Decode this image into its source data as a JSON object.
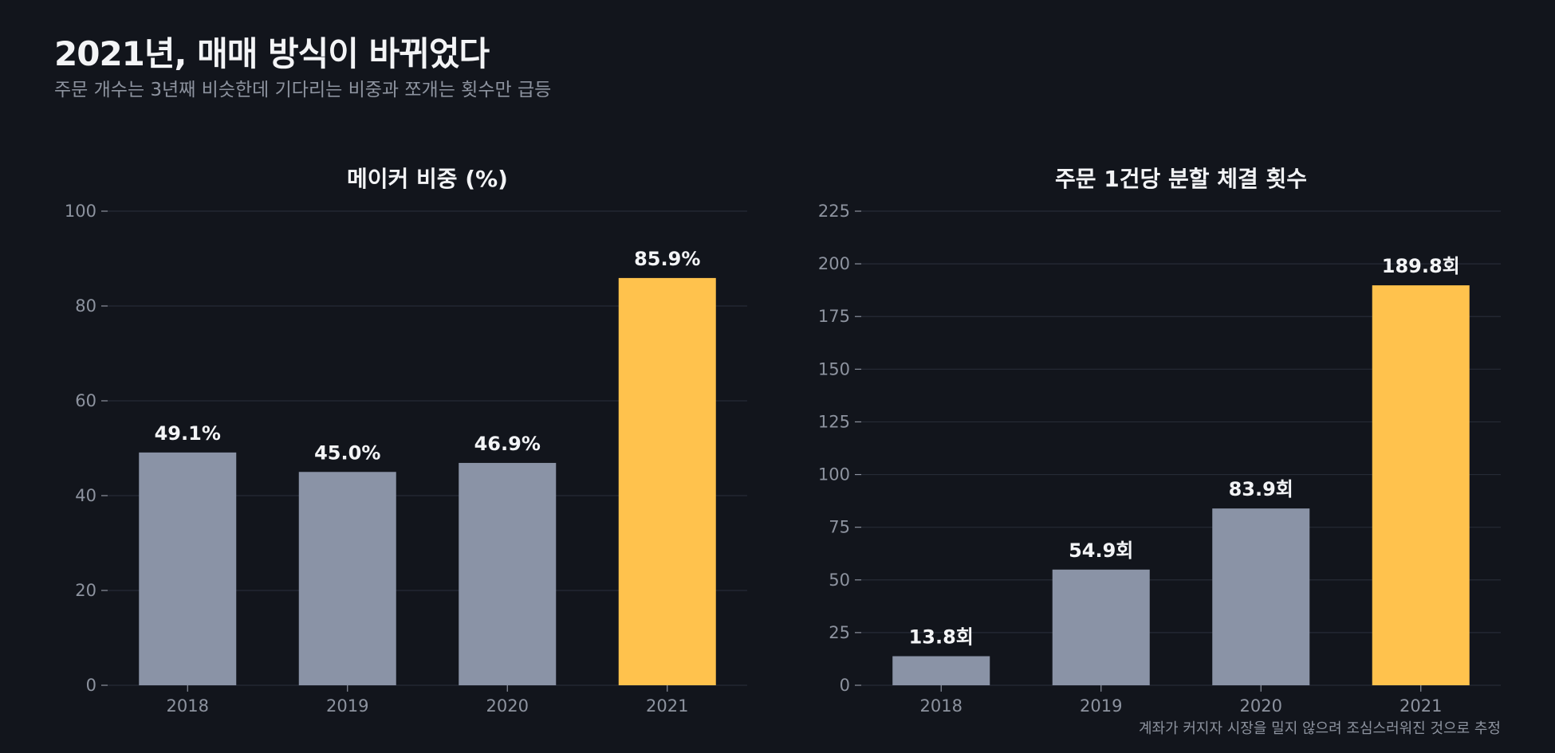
{
  "header": {
    "title": "2021년, 매매 방식이 바뀌었다",
    "subtitle": "주문 개수는 3년째 비슷한데 기다리는 비중과 쪼개는 횟수만 급등"
  },
  "footnote": "계좌가 커지자 시장을 밀지 않으려 조심스러워진 것으로 추정",
  "colors": {
    "background": "#12151c",
    "bar_normal": "#8a93a6",
    "bar_highlight": "#ffc24d",
    "grid": "#262b36",
    "axis_text": "#8d939f",
    "label_text": "#f3f4f6"
  },
  "chart_data": [
    {
      "type": "bar",
      "title": "메이커 비중 (%)",
      "categories": [
        "2018",
        "2019",
        "2020",
        "2021"
      ],
      "values": [
        49.1,
        45.0,
        46.9,
        85.9
      ],
      "value_labels": [
        "49.1%",
        "45.0%",
        "46.9%",
        "85.9%"
      ],
      "highlight": "2021",
      "ylim": [
        0,
        100
      ],
      "yticks": [
        0,
        20,
        40,
        60,
        80,
        100
      ],
      "xlabel": "",
      "ylabel": "",
      "grid": true
    },
    {
      "type": "bar",
      "title": "주문 1건당 분할 체결 횟수",
      "categories": [
        "2018",
        "2019",
        "2020",
        "2021"
      ],
      "values": [
        13.8,
        54.9,
        83.9,
        189.8
      ],
      "value_labels": [
        "13.8회",
        "54.9회",
        "83.9회",
        "189.8회"
      ],
      "highlight": "2021",
      "ylim": [
        0,
        225
      ],
      "yticks": [
        0,
        25,
        50,
        75,
        100,
        125,
        150,
        175,
        200,
        225
      ],
      "xlabel": "",
      "ylabel": "",
      "grid": true
    }
  ]
}
